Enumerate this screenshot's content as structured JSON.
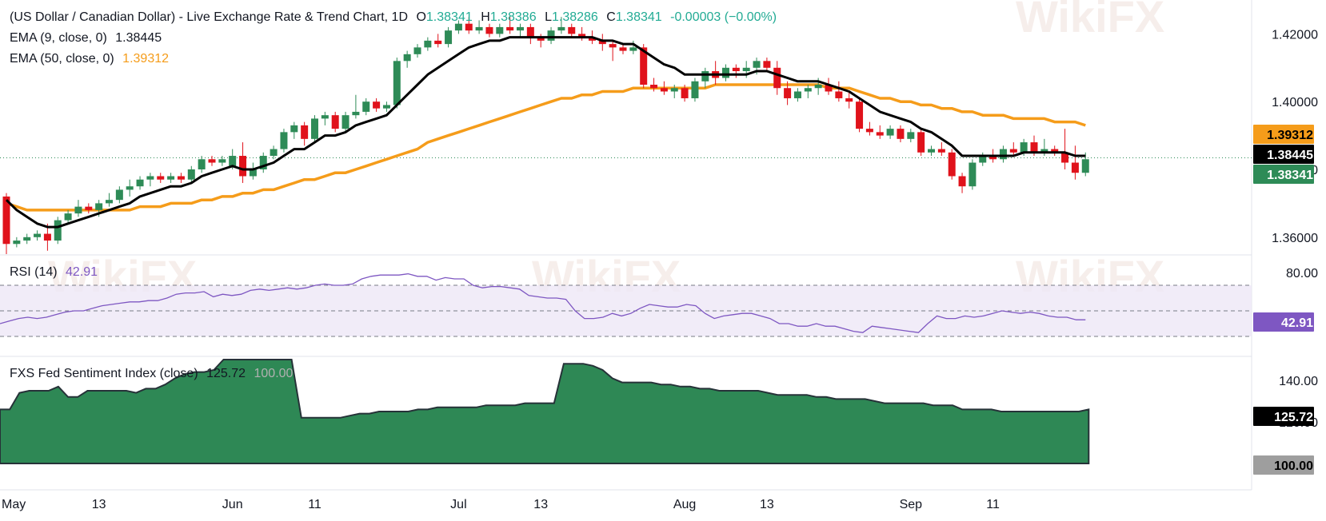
{
  "header": {
    "symbol": "(US Dollar / Canadian Dollar) - Live Exchange Rate & Trend Chart, 1D",
    "o_label": "O",
    "o_value": "1.38341",
    "h_label": "H",
    "h_value": "1.38386",
    "l_label": "L",
    "l_value": "1.38286",
    "c_label": "C",
    "c_value": "1.38341",
    "change": "-0.00003 (−0.00%)"
  },
  "ema9": {
    "label": "EMA (9, close, 0)",
    "value": "1.38445"
  },
  "ema50": {
    "label": "EMA (50, close, 0)",
    "value": "1.39312"
  },
  "rsi": {
    "label": "RSI (14)",
    "value": "42.91"
  },
  "fxs": {
    "label": "FXS Fed Sentiment Index (close)",
    "value": "125.72",
    "baseline": "100.00"
  },
  "watermark": "WikiFX",
  "colors": {
    "up": "#2e8b57",
    "down": "#e0121b",
    "ema9": "#000000",
    "ema50": "#f59c1a",
    "rsi": "#7e57c2",
    "rsi_band": "#ede7f6",
    "fxs_fill": "#2e8855",
    "grid_line": "#2e8b57"
  },
  "chart_data": [
    {
      "type": "candlestick",
      "title": "(US Dollar / Canadian Dollar) - Live Exchange Rate & Trend Chart",
      "interval": "1D",
      "ylim": [
        1.355,
        1.43
      ],
      "y_ticks": [
        "1.36000",
        "1.38000",
        "1.40000",
        "1.42000"
      ],
      "x_ticks": [
        "May",
        "13",
        "Jun",
        "11",
        "Jul",
        "13",
        "Aug",
        "13",
        "Sep",
        "11"
      ],
      "x_tick_index": [
        0,
        9,
        22,
        30,
        44,
        52,
        66,
        74,
        88,
        96
      ],
      "current_price": 1.38341,
      "candles": [
        [
          1.372,
          1.373,
          1.355,
          1.358
        ],
        [
          1.358,
          1.36,
          1.357,
          1.359
        ],
        [
          1.359,
          1.361,
          1.358,
          1.36
        ],
        [
          1.36,
          1.362,
          1.359,
          1.361
        ],
        [
          1.361,
          1.364,
          1.356,
          1.359
        ],
        [
          1.359,
          1.366,
          1.358,
          1.365
        ],
        [
          1.365,
          1.368,
          1.364,
          1.367
        ],
        [
          1.367,
          1.371,
          1.366,
          1.369
        ],
        [
          1.369,
          1.37,
          1.367,
          1.368
        ],
        [
          1.368,
          1.371,
          1.366,
          1.37
        ],
        [
          1.37,
          1.373,
          1.369,
          1.371
        ],
        [
          1.371,
          1.375,
          1.37,
          1.374
        ],
        [
          1.374,
          1.377,
          1.372,
          1.375
        ],
        [
          1.375,
          1.378,
          1.374,
          1.377
        ],
        [
          1.377,
          1.379,
          1.375,
          1.378
        ],
        [
          1.378,
          1.379,
          1.376,
          1.377
        ],
        [
          1.377,
          1.379,
          1.376,
          1.378
        ],
        [
          1.378,
          1.379,
          1.376,
          1.377
        ],
        [
          1.377,
          1.381,
          1.376,
          1.38
        ],
        [
          1.38,
          1.384,
          1.379,
          1.383
        ],
        [
          1.383,
          1.384,
          1.381,
          1.382
        ],
        [
          1.382,
          1.384,
          1.381,
          1.383
        ],
        [
          1.381,
          1.386,
          1.38,
          1.384
        ],
        [
          1.384,
          1.388,
          1.376,
          1.378
        ],
        [
          1.378,
          1.382,
          1.377,
          1.38
        ],
        [
          1.38,
          1.385,
          1.379,
          1.384
        ],
        [
          1.384,
          1.387,
          1.383,
          1.386
        ],
        [
          1.386,
          1.392,
          1.385,
          1.391
        ],
        [
          1.391,
          1.394,
          1.389,
          1.393
        ],
        [
          1.393,
          1.394,
          1.387,
          1.389
        ],
        [
          1.389,
          1.396,
          1.388,
          1.395
        ],
        [
          1.395,
          1.397,
          1.393,
          1.396
        ],
        [
          1.396,
          1.397,
          1.391,
          1.392
        ],
        [
          1.392,
          1.397,
          1.391,
          1.396
        ],
        [
          1.396,
          1.402,
          1.395,
          1.397
        ],
        [
          1.397,
          1.401,
          1.396,
          1.4
        ],
        [
          1.4,
          1.401,
          1.397,
          1.398
        ],
        [
          1.398,
          1.4,
          1.397,
          1.399
        ],
        [
          1.399,
          1.413,
          1.398,
          1.412
        ],
        [
          1.412,
          1.415,
          1.41,
          1.414
        ],
        [
          1.414,
          1.417,
          1.413,
          1.416
        ],
        [
          1.416,
          1.419,
          1.415,
          1.418
        ],
        [
          1.418,
          1.42,
          1.416,
          1.417
        ],
        [
          1.417,
          1.422,
          1.416,
          1.421
        ],
        [
          1.421,
          1.424,
          1.42,
          1.423
        ],
        [
          1.423,
          1.425,
          1.42,
          1.421
        ],
        [
          1.421,
          1.424,
          1.42,
          1.422
        ],
        [
          1.422,
          1.423,
          1.419,
          1.42
        ],
        [
          1.42,
          1.423,
          1.419,
          1.422
        ],
        [
          1.422,
          1.425,
          1.42,
          1.421
        ],
        [
          1.421,
          1.423,
          1.419,
          1.422
        ],
        [
          1.422,
          1.423,
          1.417,
          1.419
        ],
        [
          1.419,
          1.42,
          1.416,
          1.418
        ],
        [
          1.418,
          1.422,
          1.417,
          1.421
        ],
        [
          1.421,
          1.425,
          1.42,
          1.422
        ],
        [
          1.422,
          1.423,
          1.419,
          1.42
        ],
        [
          1.42,
          1.422,
          1.418,
          1.419
        ],
        [
          1.419,
          1.421,
          1.417,
          1.418
        ],
        [
          1.418,
          1.42,
          1.415,
          1.417
        ],
        [
          1.417,
          1.418,
          1.412,
          1.416
        ],
        [
          1.416,
          1.417,
          1.414,
          1.415
        ],
        [
          1.415,
          1.418,
          1.414,
          1.416
        ],
        [
          1.416,
          1.417,
          1.404,
          1.405
        ],
        [
          1.405,
          1.407,
          1.403,
          1.404
        ],
        [
          1.404,
          1.406,
          1.402,
          1.403
        ],
        [
          1.403,
          1.405,
          1.401,
          1.404
        ],
        [
          1.404,
          1.405,
          1.4,
          1.401
        ],
        [
          1.401,
          1.407,
          1.4,
          1.406
        ],
        [
          1.406,
          1.41,
          1.404,
          1.409
        ],
        [
          1.409,
          1.412,
          1.405,
          1.407
        ],
        [
          1.407,
          1.411,
          1.406,
          1.41
        ],
        [
          1.41,
          1.411,
          1.407,
          1.409
        ],
        [
          1.409,
          1.412,
          1.407,
          1.41
        ],
        [
          1.41,
          1.413,
          1.408,
          1.412
        ],
        [
          1.412,
          1.413,
          1.409,
          1.41
        ],
        [
          1.41,
          1.412,
          1.402,
          1.404
        ],
        [
          1.404,
          1.406,
          1.399,
          1.401
        ],
        [
          1.401,
          1.404,
          1.4,
          1.403
        ],
        [
          1.403,
          1.405,
          1.401,
          1.404
        ],
        [
          1.404,
          1.407,
          1.402,
          1.405
        ],
        [
          1.405,
          1.407,
          1.402,
          1.403
        ],
        [
          1.403,
          1.406,
          1.4,
          1.401
        ],
        [
          1.401,
          1.403,
          1.398,
          1.4
        ],
        [
          1.4,
          1.401,
          1.391,
          1.392
        ],
        [
          1.392,
          1.394,
          1.39,
          1.391
        ],
        [
          1.391,
          1.393,
          1.389,
          1.39
        ],
        [
          1.39,
          1.393,
          1.389,
          1.392
        ],
        [
          1.392,
          1.393,
          1.388,
          1.389
        ],
        [
          1.389,
          1.392,
          1.388,
          1.391
        ],
        [
          1.391,
          1.392,
          1.384,
          1.385
        ],
        [
          1.385,
          1.387,
          1.384,
          1.386
        ],
        [
          1.386,
          1.388,
          1.384,
          1.385
        ],
        [
          1.385,
          1.386,
          1.377,
          1.378
        ],
        [
          1.378,
          1.379,
          1.373,
          1.375
        ],
        [
          1.375,
          1.383,
          1.374,
          1.382
        ],
        [
          1.382,
          1.385,
          1.381,
          1.384
        ],
        [
          1.384,
          1.386,
          1.382,
          1.383
        ],
        [
          1.383,
          1.387,
          1.382,
          1.386
        ],
        [
          1.386,
          1.388,
          1.384,
          1.385
        ],
        [
          1.385,
          1.389,
          1.384,
          1.388
        ],
        [
          1.388,
          1.39,
          1.384,
          1.385
        ],
        [
          1.385,
          1.389,
          1.384,
          1.386
        ],
        [
          1.386,
          1.387,
          1.384,
          1.385
        ],
        [
          1.385,
          1.392,
          1.38,
          1.382
        ],
        [
          1.382,
          1.387,
          1.377,
          1.379
        ],
        [
          1.379,
          1.385,
          1.378,
          1.383
        ]
      ],
      "ema9": [
        1.371,
        1.368,
        1.366,
        1.364,
        1.363,
        1.363,
        1.364,
        1.365,
        1.366,
        1.367,
        1.368,
        1.369,
        1.37,
        1.372,
        1.373,
        1.374,
        1.375,
        1.375,
        1.376,
        1.378,
        1.379,
        1.38,
        1.381,
        1.38,
        1.38,
        1.381,
        1.382,
        1.384,
        1.386,
        1.386,
        1.388,
        1.39,
        1.39,
        1.391,
        1.393,
        1.394,
        1.395,
        1.396,
        1.399,
        1.402,
        1.405,
        1.408,
        1.41,
        1.412,
        1.414,
        1.416,
        1.417,
        1.418,
        1.418,
        1.419,
        1.419,
        1.419,
        1.419,
        1.419,
        1.419,
        1.419,
        1.419,
        1.419,
        1.418,
        1.418,
        1.417,
        1.417,
        1.415,
        1.413,
        1.411,
        1.41,
        1.408,
        1.408,
        1.408,
        1.408,
        1.408,
        1.408,
        1.408,
        1.409,
        1.409,
        1.408,
        1.407,
        1.406,
        1.406,
        1.406,
        1.405,
        1.404,
        1.403,
        1.401,
        1.399,
        1.397,
        1.396,
        1.395,
        1.394,
        1.392,
        1.391,
        1.389,
        1.387,
        1.384,
        1.384,
        1.384,
        1.384,
        1.384,
        1.384,
        1.385,
        1.385,
        1.385,
        1.385,
        1.385,
        1.384,
        1.384
      ],
      "ema50": [
        1.37,
        1.369,
        1.368,
        1.368,
        1.368,
        1.368,
        1.368,
        1.368,
        1.368,
        1.368,
        1.368,
        1.368,
        1.368,
        1.369,
        1.369,
        1.369,
        1.37,
        1.37,
        1.37,
        1.371,
        1.371,
        1.372,
        1.372,
        1.373,
        1.373,
        1.374,
        1.374,
        1.375,
        1.376,
        1.377,
        1.377,
        1.378,
        1.379,
        1.379,
        1.38,
        1.381,
        1.382,
        1.383,
        1.384,
        1.385,
        1.386,
        1.388,
        1.389,
        1.39,
        1.391,
        1.392,
        1.393,
        1.394,
        1.395,
        1.396,
        1.397,
        1.398,
        1.399,
        1.4,
        1.401,
        1.401,
        1.402,
        1.402,
        1.403,
        1.403,
        1.403,
        1.404,
        1.404,
        1.404,
        1.404,
        1.404,
        1.404,
        1.404,
        1.404,
        1.405,
        1.405,
        1.405,
        1.405,
        1.405,
        1.405,
        1.405,
        1.405,
        1.405,
        1.405,
        1.405,
        1.404,
        1.404,
        1.404,
        1.403,
        1.402,
        1.401,
        1.401,
        1.4,
        1.4,
        1.399,
        1.399,
        1.398,
        1.398,
        1.397,
        1.397,
        1.396,
        1.396,
        1.396,
        1.395,
        1.395,
        1.395,
        1.395,
        1.394,
        1.394,
        1.394,
        1.393
      ]
    },
    {
      "type": "line",
      "title": "RSI (14)",
      "ylim": [
        15,
        90
      ],
      "y_ticks": [
        "80.00"
      ],
      "band": [
        30,
        70
      ],
      "midline": 50,
      "values": [
        40,
        42,
        44,
        45,
        44,
        45,
        47,
        49,
        50,
        50,
        52,
        54,
        55,
        56,
        57,
        57,
        58,
        58,
        60,
        63,
        64,
        64,
        65,
        61,
        63,
        62,
        63,
        66,
        67,
        66,
        67,
        68,
        67,
        68,
        70,
        71,
        70,
        70,
        71,
        75,
        77,
        78,
        78,
        78,
        79,
        77,
        77,
        74,
        76,
        75,
        75,
        70,
        68,
        69,
        69,
        68,
        67,
        62,
        61,
        60,
        60,
        59,
        50,
        44,
        44,
        45,
        48,
        46,
        48,
        52,
        55,
        54,
        53,
        53,
        55,
        54,
        48,
        44,
        46,
        47,
        48,
        48,
        46,
        44,
        40,
        40,
        38,
        38,
        40,
        38,
        38,
        36,
        34,
        33,
        38,
        37,
        36,
        35,
        34,
        33,
        40,
        46,
        44,
        44,
        46,
        45,
        46,
        48,
        50,
        49,
        48,
        49,
        48,
        46,
        45,
        45,
        43,
        43
      ]
    },
    {
      "type": "area",
      "title": "FXS Fed Sentiment Index (close)",
      "ylim": [
        100,
        150
      ],
      "y_ticks": [
        "120.00",
        "140.00"
      ],
      "baseline": 100,
      "values": [
        126,
        126,
        134,
        135,
        135,
        135,
        137,
        132,
        132,
        135,
        135,
        135,
        135,
        135,
        134,
        136,
        136,
        138,
        141,
        143,
        144,
        144,
        145,
        150,
        150,
        150,
        150,
        150,
        150,
        150,
        150,
        122,
        122,
        122,
        122,
        122,
        123,
        124,
        124,
        125,
        125,
        125,
        125,
        126,
        126,
        127,
        127,
        127,
        127,
        127,
        128,
        128,
        128,
        128,
        129,
        129,
        129,
        129,
        148,
        148,
        148,
        147,
        145,
        141,
        139,
        139,
        139,
        139,
        138,
        138,
        137,
        137,
        136,
        136,
        135,
        135,
        135,
        135,
        135,
        134,
        133,
        133,
        133,
        133,
        132,
        132,
        131,
        131,
        131,
        131,
        130,
        129,
        129,
        129,
        129,
        129,
        128,
        128,
        128,
        126,
        126,
        126,
        126,
        125,
        125,
        125,
        125,
        125,
        125,
        125,
        125,
        125,
        126
      ]
    }
  ]
}
